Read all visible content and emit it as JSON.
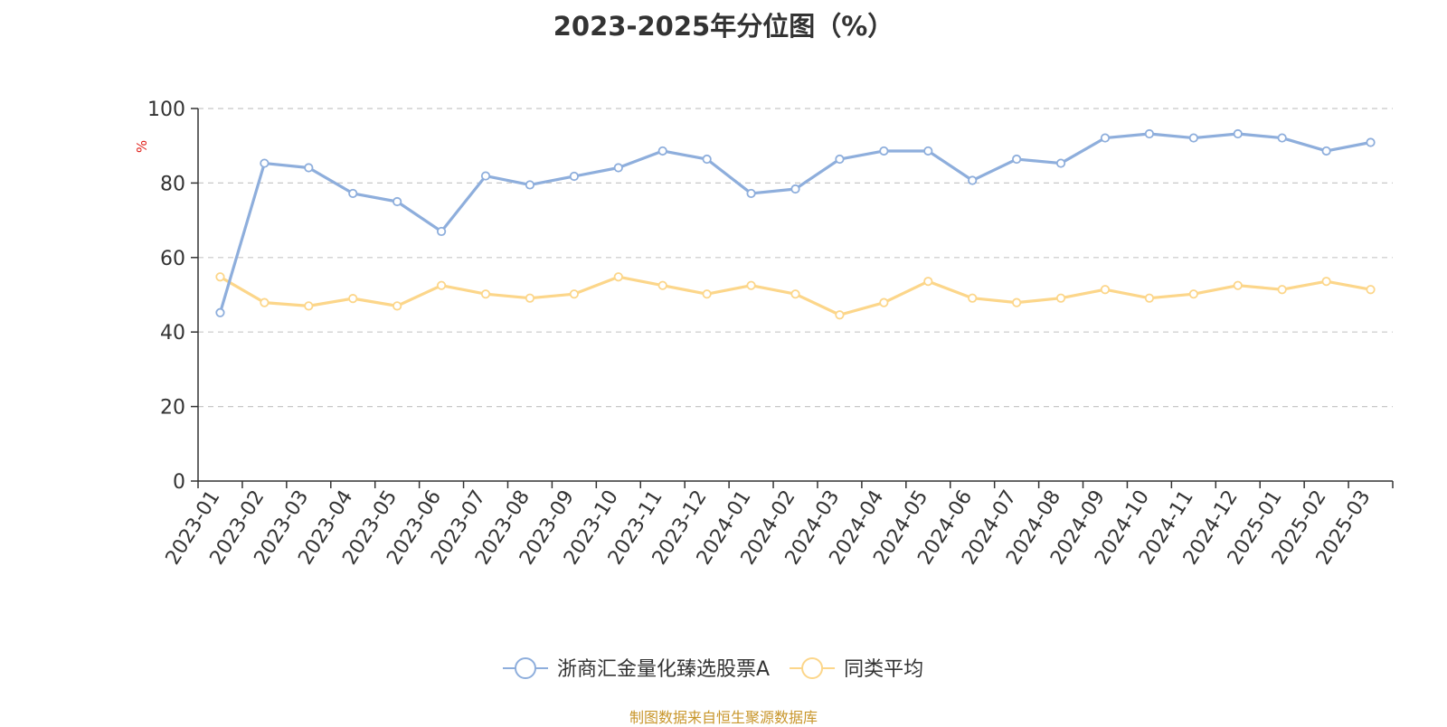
{
  "title": "2023-2025年分位图（%）",
  "source": "制图数据来自恒生聚源数据库",
  "colors": {
    "fund": "#8eaedc",
    "avg": "#fcd68a",
    "axis": "#333333",
    "grid": "#c8c8c8",
    "unit": "#e0211b"
  },
  "chart_data": {
    "type": "line",
    "ylabel": "%",
    "ylim": [
      0,
      100
    ],
    "yticks": [
      "0",
      "20",
      "40",
      "60",
      "80",
      "100"
    ],
    "grid": true,
    "legend": "bottom-center",
    "categories": [
      "2023-01",
      "2023-02",
      "2023-03",
      "2023-04",
      "2023-05",
      "2023-06",
      "2023-07",
      "2023-08",
      "2023-09",
      "2023-10",
      "2023-11",
      "2023-12",
      "2024-01",
      "2024-02",
      "2024-03",
      "2024-04",
      "2024-05",
      "2024-06",
      "2024-07",
      "2024-08",
      "2024-09",
      "2024-10",
      "2024-11",
      "2024-12",
      "2025-01",
      "2025-02",
      "2025-03"
    ],
    "series": [
      {
        "name": "浙商汇金量化臻选股票A",
        "values": [
          45.2,
          85.3,
          84.1,
          77.2,
          75.0,
          67.0,
          81.9,
          79.5,
          81.8,
          84.1,
          88.6,
          86.4,
          77.2,
          78.4,
          86.4,
          88.6,
          88.6,
          80.7,
          86.4,
          85.3,
          92.1,
          93.2,
          92.1,
          93.2,
          92.1,
          88.6,
          90.9
        ]
      },
      {
        "name": "同类平均",
        "values": [
          54.8,
          47.9,
          47.0,
          49.0,
          47.0,
          52.5,
          50.2,
          49.1,
          50.2,
          54.8,
          52.5,
          50.2,
          52.5,
          50.2,
          44.6,
          47.9,
          53.6,
          49.1,
          47.9,
          49.1,
          51.4,
          49.1,
          50.2,
          52.5,
          51.4,
          53.6,
          51.4
        ]
      }
    ]
  }
}
